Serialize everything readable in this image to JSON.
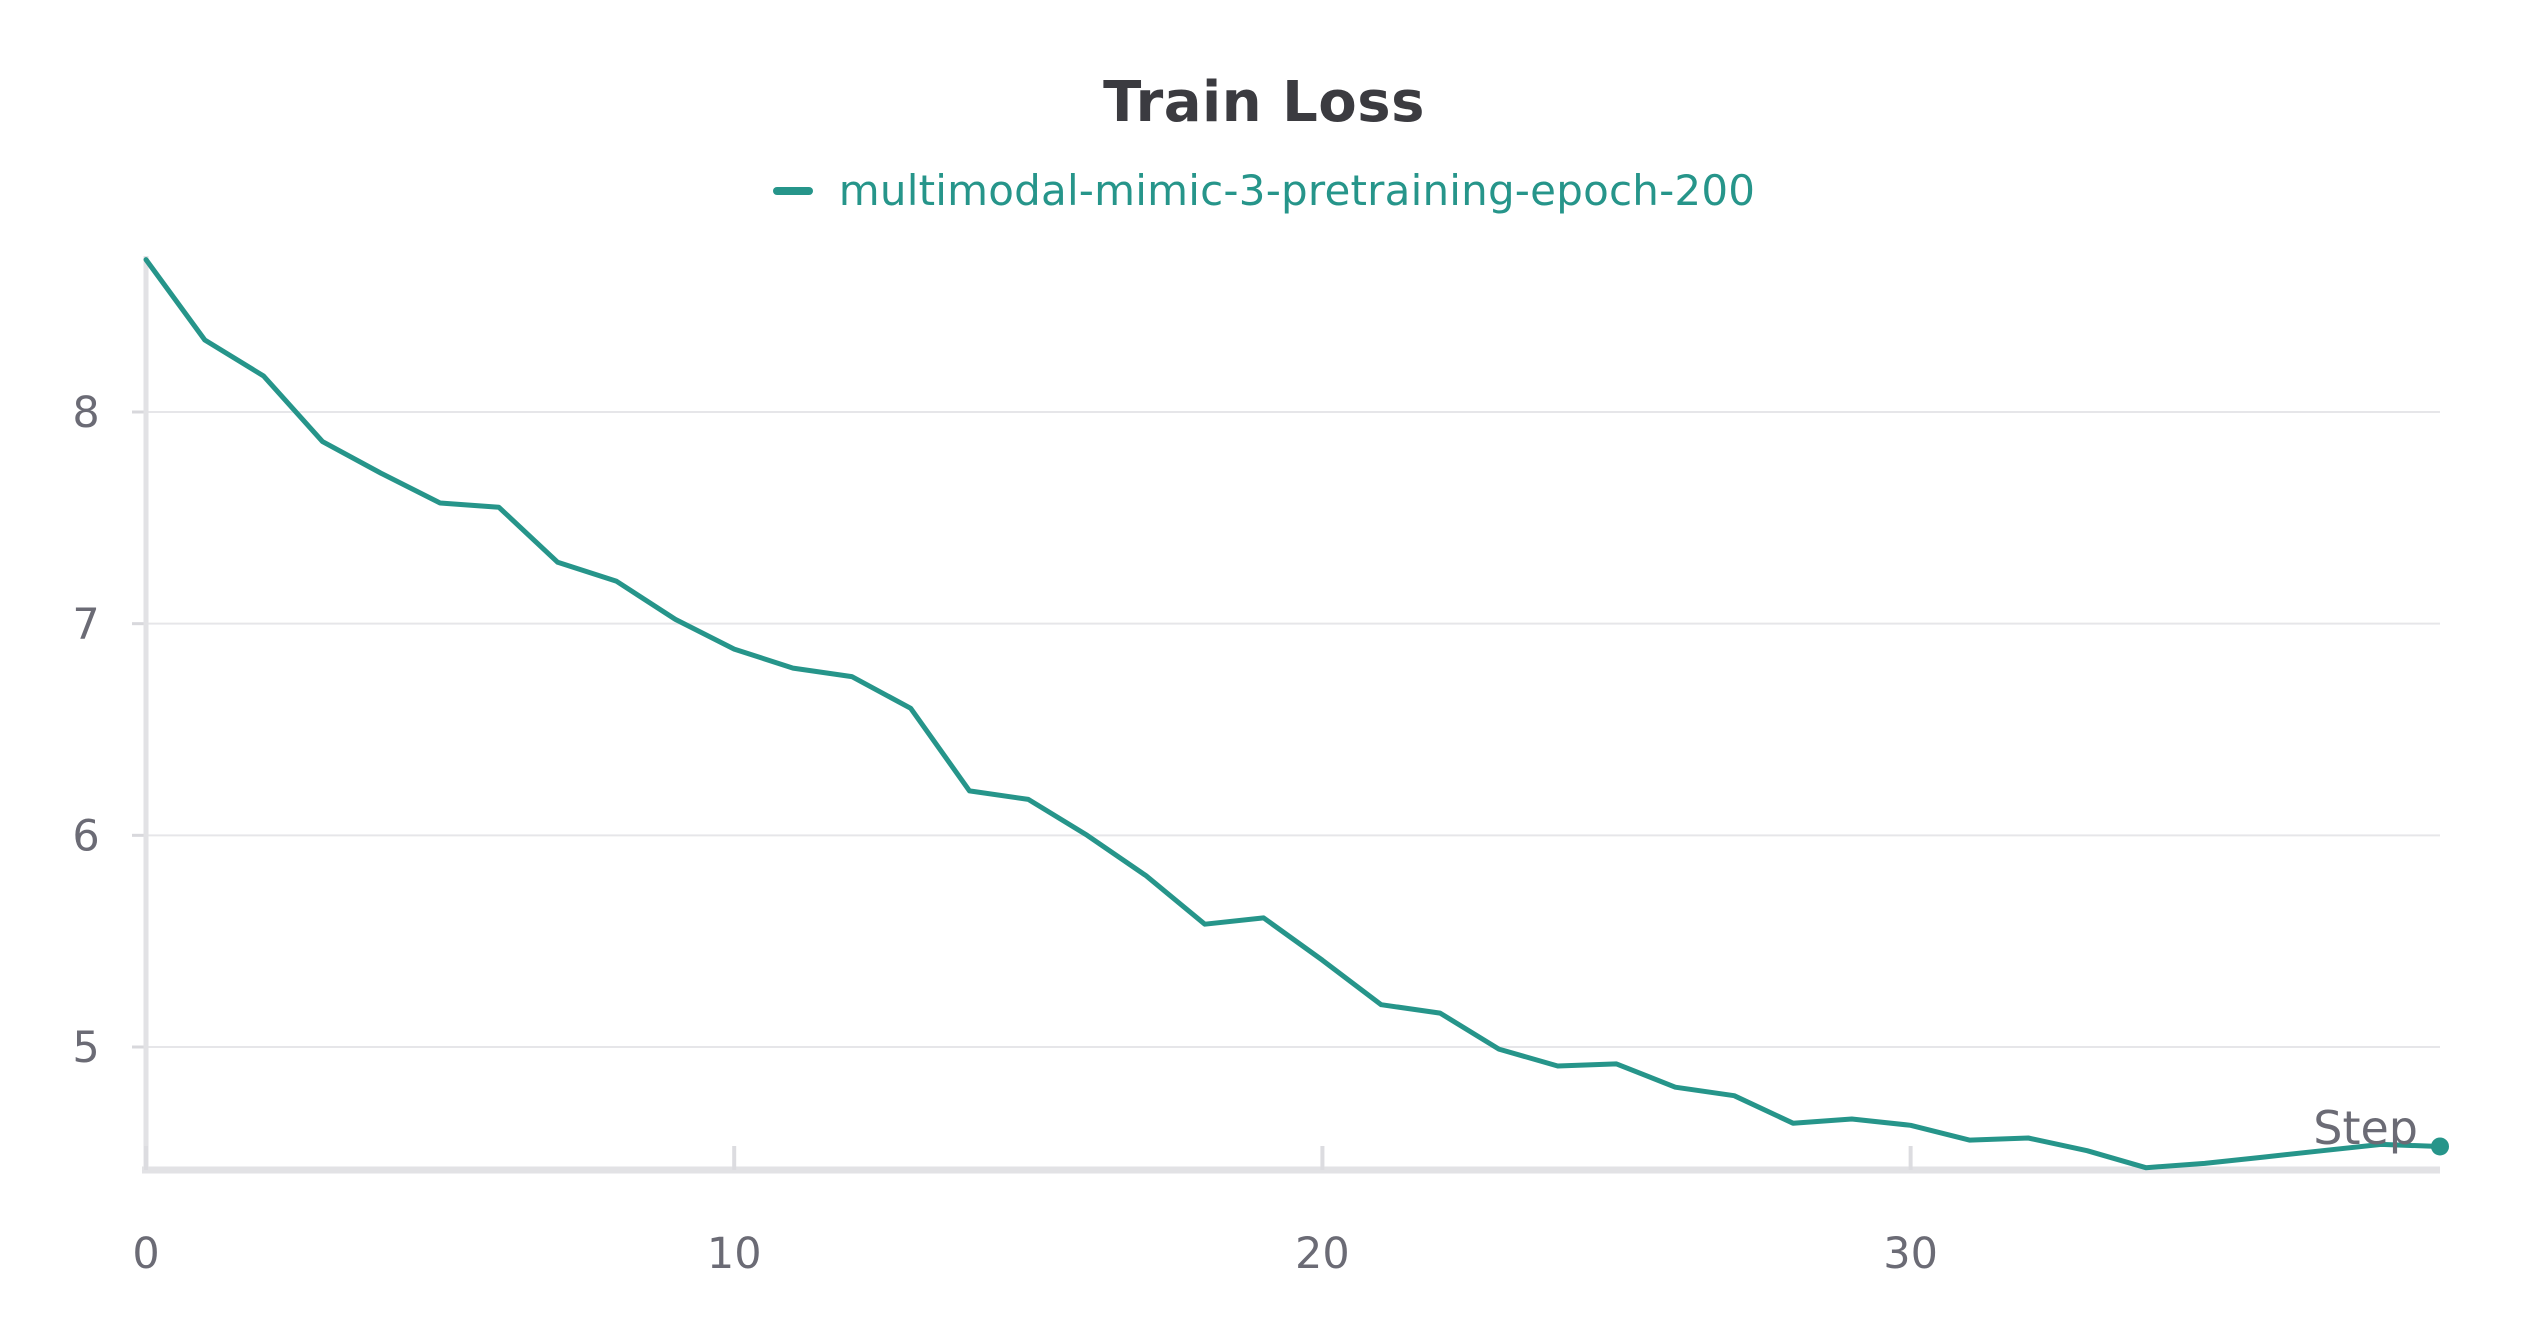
{
  "chart_data": {
    "type": "line",
    "title": "Train Loss",
    "xlabel": "Step",
    "ylabel": "",
    "legend_position": "top-center",
    "grid": true,
    "xlim": [
      0,
      39
    ],
    "ylim": [
      4.43,
      8.72
    ],
    "x_ticks": [
      0,
      10,
      20,
      30
    ],
    "y_ticks": [
      5,
      6,
      7,
      8
    ],
    "series": [
      {
        "name": "multimodal-mimic-3-pretraining-epoch-200",
        "color": "#26958a",
        "x": [
          0,
          1,
          2,
          3,
          4,
          5,
          6,
          7,
          8,
          9,
          10,
          11,
          12,
          13,
          14,
          15,
          16,
          17,
          18,
          19,
          20,
          21,
          22,
          23,
          24,
          25,
          26,
          27,
          28,
          29,
          30,
          31,
          32,
          33,
          34,
          35,
          36,
          37,
          38,
          39
        ],
        "values": [
          8.72,
          8.34,
          8.17,
          7.86,
          7.71,
          7.57,
          7.55,
          7.29,
          7.2,
          7.02,
          6.88,
          6.79,
          6.75,
          6.6,
          6.21,
          6.17,
          6.0,
          5.81,
          5.58,
          5.61,
          5.41,
          5.2,
          5.16,
          4.99,
          4.91,
          4.92,
          4.81,
          4.77,
          4.64,
          4.66,
          4.63,
          4.56,
          4.57,
          4.51,
          4.43,
          4.45,
          4.48,
          4.51,
          4.54,
          4.53
        ]
      }
    ]
  }
}
